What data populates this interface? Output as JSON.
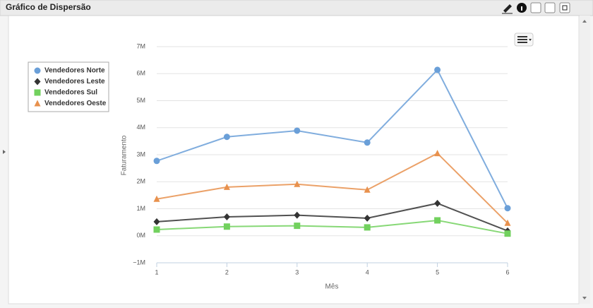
{
  "header": {
    "title": "Gráfico de Dispersão"
  },
  "chart_data": {
    "type": "line",
    "x_label": "Mês",
    "y_label": "Faturamento",
    "x": [
      1,
      2,
      3,
      4,
      5,
      6
    ],
    "xlim": [
      1,
      6
    ],
    "xticks": [
      1,
      2,
      3,
      4,
      5,
      6
    ],
    "ylim": [
      -1000000,
      7000000
    ],
    "yticks": [
      {
        "value": -1000000,
        "label": "−1M"
      },
      {
        "value": 0,
        "label": "0M"
      },
      {
        "value": 1000000,
        "label": "1M"
      },
      {
        "value": 2000000,
        "label": "2M"
      },
      {
        "value": 3000000,
        "label": "3M"
      },
      {
        "value": 4000000,
        "label": "4M"
      },
      {
        "value": 5000000,
        "label": "5M"
      },
      {
        "value": 6000000,
        "label": "6M"
      },
      {
        "value": 7000000,
        "label": "7M"
      }
    ],
    "grid": true,
    "legend": "top-left",
    "series": [
      {
        "name": "Vendedores Norte",
        "color": "#6a9fd8",
        "marker": "circle",
        "values": [
          2770000,
          3660000,
          3890000,
          3450000,
          6140000,
          1020000
        ]
      },
      {
        "name": "Vendedores Leste",
        "color": "#333333",
        "marker": "diamond",
        "values": [
          520000,
          700000,
          760000,
          650000,
          1200000,
          180000
        ]
      },
      {
        "name": "Vendedores Sul",
        "color": "#72d15e",
        "marker": "square",
        "values": [
          230000,
          340000,
          370000,
          310000,
          570000,
          80000
        ]
      },
      {
        "name": "Vendedores Oeste",
        "color": "#e8914d",
        "marker": "triangle",
        "values": [
          1360000,
          1800000,
          1910000,
          1700000,
          3050000,
          470000
        ]
      }
    ]
  }
}
